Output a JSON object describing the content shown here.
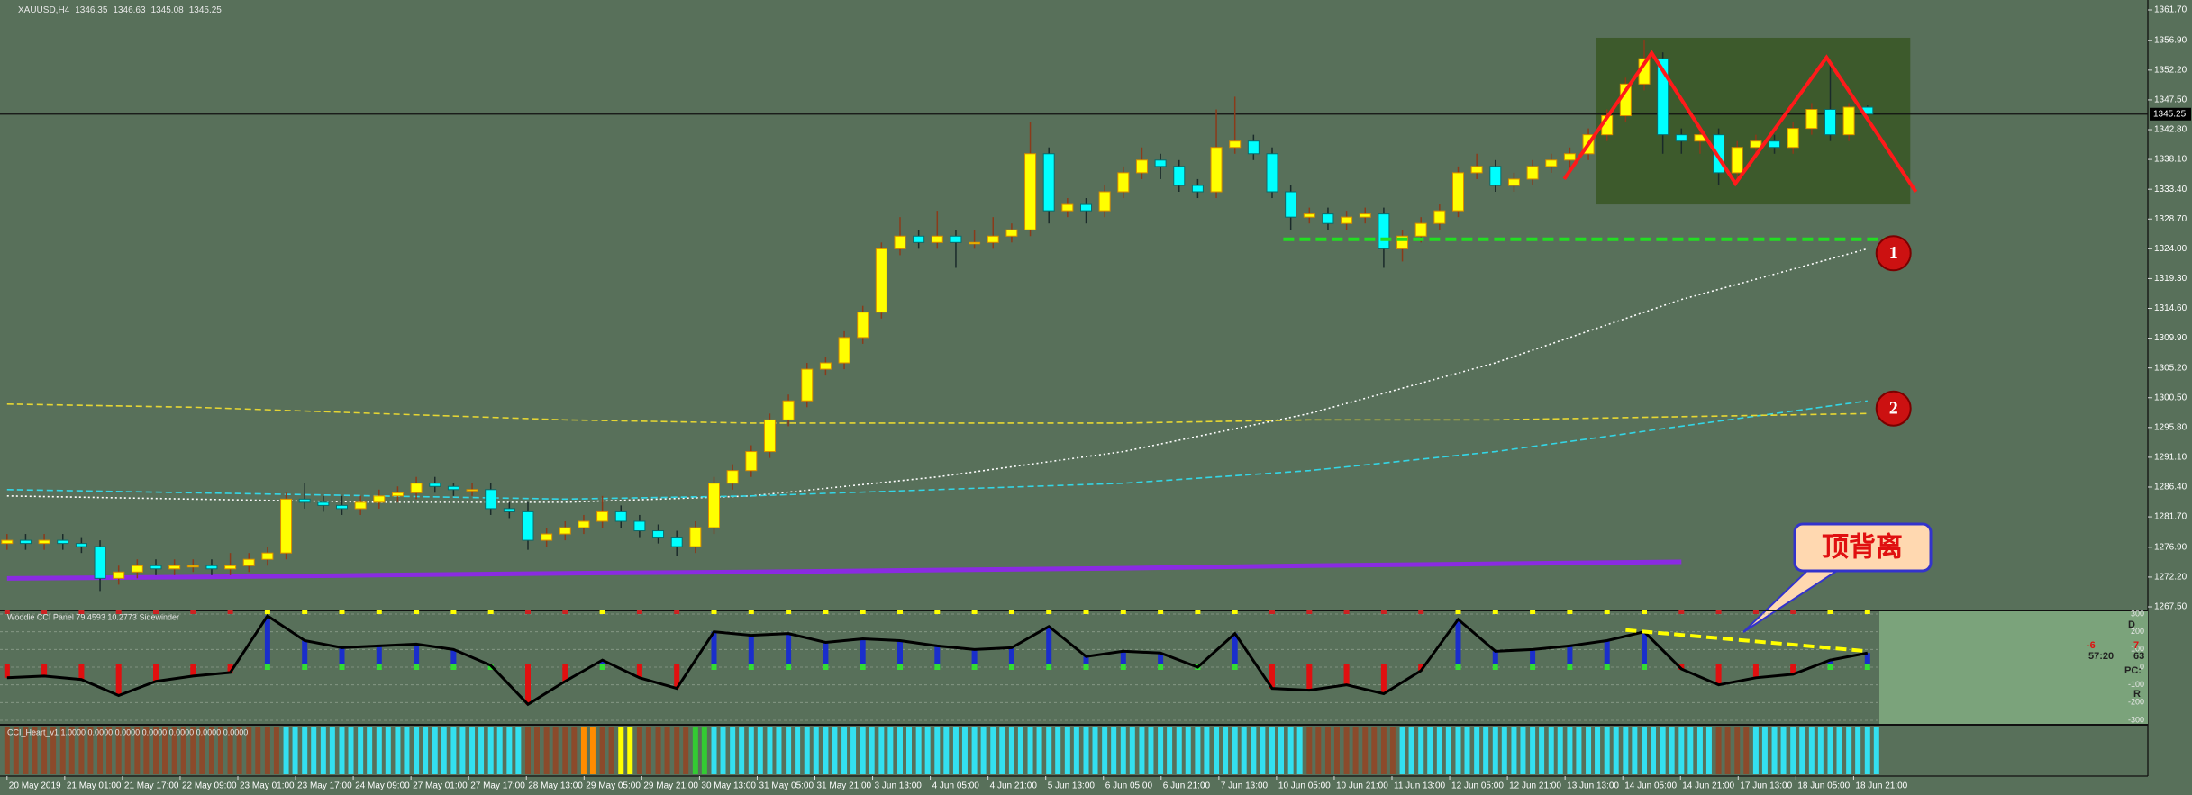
{
  "chart_data": [
    {
      "type": "candlestick",
      "symbol": "XAUUSD,H4",
      "open": [
        1277.5,
        1278,
        1277.5,
        1278,
        1277.5,
        1277,
        1272,
        1273,
        1274,
        1273.5,
        1274,
        1274,
        1273.5,
        1274,
        1275,
        1276,
        1284.5,
        1284,
        1283.5,
        1283,
        1284,
        1285,
        1285.5,
        1287,
        1286.5,
        1286,
        1286,
        1283,
        1282.5,
        1278,
        1279,
        1280,
        1281,
        1282.5,
        1281,
        1279.5,
        1278.5,
        1277,
        1280,
        1287,
        1289,
        1292,
        1297,
        1300,
        1305,
        1306,
        1310,
        1314,
        1324,
        1326,
        1325,
        1326,
        1325,
        1325,
        1326,
        1327,
        1339,
        1330,
        1331,
        1330,
        1333,
        1336,
        1338,
        1337,
        1334,
        1333,
        1340,
        1341,
        1339,
        1333,
        1329,
        1329.5,
        1328,
        1329,
        1329.5,
        1324,
        1326,
        1328,
        1330,
        1336,
        1337,
        1334,
        1335,
        1337,
        1338,
        1339,
        1342,
        1345,
        1350,
        1354,
        1342,
        1341,
        1342,
        1336,
        1340,
        1341,
        1340,
        1343,
        1346,
        1342,
        1346.35
      ],
      "high": [
        1279,
        1279,
        1279,
        1279,
        1278.5,
        1278,
        1274,
        1275,
        1275,
        1275,
        1275,
        1275,
        1276,
        1276,
        1277,
        1285.5,
        1287,
        1285,
        1285,
        1285,
        1286,
        1286.5,
        1288,
        1288,
        1287,
        1287,
        1287,
        1284,
        1284,
        1280,
        1281,
        1282,
        1285,
        1283.5,
        1282,
        1280.5,
        1279.5,
        1281,
        1288,
        1290,
        1293,
        1298,
        1301,
        1306,
        1307,
        1311,
        1315,
        1325,
        1329,
        1327,
        1330,
        1327,
        1327,
        1329,
        1328,
        1344,
        1340,
        1332,
        1332,
        1334,
        1337,
        1340,
        1339,
        1338,
        1335,
        1346,
        1348,
        1342,
        1340,
        1334,
        1330.5,
        1330.5,
        1330,
        1330.5,
        1330.5,
        1327,
        1329,
        1331,
        1337,
        1339,
        1338,
        1336,
        1338,
        1339,
        1340,
        1343,
        1346,
        1351,
        1357,
        1355,
        1343,
        1343,
        1343,
        1341,
        1342,
        1342,
        1344,
        1347,
        1353,
        1347,
        1346.63
      ],
      "low": [
        1276.5,
        1276.5,
        1276.5,
        1276.5,
        1276,
        1270,
        1271,
        1272,
        1272.5,
        1272.5,
        1273,
        1272.5,
        1272.5,
        1273,
        1274,
        1275,
        1283,
        1282.5,
        1282,
        1282,
        1283,
        1284,
        1284.5,
        1285.5,
        1285,
        1285,
        1282,
        1281.5,
        1276.5,
        1277,
        1278,
        1279,
        1280,
        1280,
        1278.5,
        1277.5,
        1275.5,
        1276,
        1279,
        1286,
        1288,
        1291,
        1296,
        1299,
        1304,
        1305,
        1309,
        1313,
        1323,
        1324,
        1324,
        1321,
        1324,
        1324,
        1325,
        1326,
        1328,
        1329,
        1328,
        1329,
        1332,
        1335,
        1335,
        1333,
        1332,
        1332,
        1339,
        1338,
        1332,
        1327,
        1328,
        1327,
        1327,
        1328,
        1321,
        1322,
        1325,
        1327,
        1329,
        1335,
        1333,
        1333,
        1334,
        1336,
        1336,
        1338,
        1341,
        1344,
        1349,
        1339,
        1339,
        1339,
        1334,
        1335,
        1339,
        1339,
        1339,
        1342,
        1341,
        1341,
        1345.08
      ],
      "close": [
        1278,
        1277.5,
        1278,
        1277.5,
        1277,
        1272,
        1273,
        1274,
        1273.5,
        1274,
        1274,
        1273.5,
        1274,
        1275,
        1276,
        1284.5,
        1284,
        1283.5,
        1283,
        1284,
        1285,
        1285.5,
        1287,
        1286.5,
        1286,
        1286,
        1283,
        1282.5,
        1278,
        1279,
        1280,
        1281,
        1282.5,
        1281,
        1279.5,
        1278.5,
        1277,
        1280,
        1287,
        1289,
        1292,
        1297,
        1300,
        1305,
        1306,
        1310,
        1314,
        1324,
        1326,
        1325,
        1326,
        1325,
        1325,
        1326,
        1327,
        1339,
        1330,
        1331,
        1330,
        1333,
        1336,
        1338,
        1337,
        1334,
        1333,
        1340,
        1341,
        1339,
        1333,
        1329,
        1329.5,
        1328,
        1329,
        1329.5,
        1324,
        1326,
        1328,
        1330,
        1336,
        1337,
        1334,
        1335,
        1337,
        1338,
        1339,
        1342,
        1345,
        1350,
        1354,
        1342,
        1341,
        1342,
        1336,
        1340,
        1341,
        1340,
        1343,
        1346,
        1342,
        1346.35,
        1345.25
      ],
      "up_color": "#ffff00",
      "down_color": "#00ffff",
      "ylim": [
        1267.5,
        1361.7
      ],
      "yticks": [
        {
          "value": 1361.7,
          "label": "1361.70"
        },
        {
          "value": 1356.9,
          "label": "1356.90"
        },
        {
          "value": 1352.2,
          "label": "1352.20"
        },
        {
          "value": 1347.5,
          "label": "1347.50"
        },
        {
          "value": 1342.8,
          "label": "1342.80"
        },
        {
          "value": 1338.1,
          "label": "1338.10"
        },
        {
          "value": 1333.4,
          "label": "1333.40"
        },
        {
          "value": 1328.7,
          "label": "1328.70"
        },
        {
          "value": 1324,
          "label": "1324.00"
        },
        {
          "value": 1319.3,
          "label": "1319.30"
        },
        {
          "value": 1314.6,
          "label": "1314.60"
        },
        {
          "value": 1309.9,
          "label": "1309.90"
        },
        {
          "value": 1305.2,
          "label": "1305.20"
        },
        {
          "value": 1300.5,
          "label": "1300.50"
        },
        {
          "value": 1295.8,
          "label": "1295.80"
        },
        {
          "value": 1291.1,
          "label": "1291.10"
        },
        {
          "value": 1286.4,
          "label": "1286.40"
        },
        {
          "value": 1281.7,
          "label": "1281.70"
        },
        {
          "value": 1276.9,
          "label": "1276.90"
        },
        {
          "value": 1272.2,
          "label": "1272.20"
        },
        {
          "value": 1267.5,
          "label": "1267.50"
        }
      ],
      "x_labels": [
        "20 May 2019",
        "21 May 01:00",
        "21 May 17:00",
        "22 May 09:00",
        "23 May 01:00",
        "23 May 17:00",
        "24 May 09:00",
        "27 May 01:00",
        "27 May 17:00",
        "28 May 13:00",
        "29 May 05:00",
        "29 May 21:00",
        "30 May 13:00",
        "31 May 05:00",
        "31 May 21:00",
        "3 Jun 13:00",
        "4 Jun 05:00",
        "4 Jun 21:00",
        "5 Jun 13:00",
        "6 Jun 05:00",
        "6 Jun 21:00",
        "7 Jun 13:00",
        "10 Jun 05:00",
        "10 Jun 21:00",
        "11 Jun 13:00",
        "12 Jun 05:00",
        "12 Jun 21:00",
        "13 Jun 13:00",
        "14 Jun 05:00",
        "14 Jun 21:00",
        "17 Jun 13:00",
        "18 Jun 05:00",
        "18 Jun 21:00"
      ],
      "moving_averages": {
        "x": [
          0,
          10,
          20,
          30,
          40,
          50,
          60,
          70,
          80,
          90,
          100
        ],
        "series": [
          {
            "color": "#ffffff",
            "style": "dotted",
            "values": [
              1285,
              1284.5,
              1284,
              1284,
              1285,
              1288,
              1292,
              1298,
              1306,
              1316,
              1324
            ]
          },
          {
            "color": "#33d6e6",
            "style": "dashed",
            "values": [
              1286,
              1285.5,
              1285,
              1284.5,
              1285,
              1286,
              1287,
              1289,
              1292,
              1296,
              1300
            ]
          },
          {
            "color": "#e6d633",
            "style": "dashed",
            "values": [
              1299.5,
              1299,
              1298,
              1297,
              1296.5,
              1296.5,
              1296.5,
              1297,
              1297,
              1297.5,
              1298
            ]
          },
          {
            "color": "#8a2be2",
            "style": "thick",
            "values": [
              1272,
              1272.2,
              1272.5,
              1272.8,
              1273,
              1273.3,
              1273.6,
              1274,
              1274.3,
              1274.6,
              null
            ]
          }
        ]
      },
      "box": {
        "x": [
          85.4,
          102.3
        ],
        "y": [
          1331,
          1357.3
        ],
        "color": "#3d5a2c"
      },
      "support_line": {
        "x": [
          68.6,
          101.2
        ],
        "y": [
          1325.5,
          1325.5
        ],
        "color": "#22dd22"
      },
      "zigzag": {
        "x": [
          83.7,
          88.4,
          92.9,
          97.8,
          102.6
        ],
        "y": [
          1335,
          1354.9,
          1334.3,
          1354.2,
          1333
        ],
        "color": "#ff1a1a"
      },
      "markers": [
        {
          "label": "1",
          "x": 101.4,
          "y": 1323.3
        },
        {
          "label": "2",
          "x": 101.4,
          "y": 1298.8
        }
      ],
      "callout": "顶背离"
    },
    {
      "type": "oscillator",
      "title": "Woodie CCI Panel 79.4593 10.2773 Sidewinder",
      "x": [
        0,
        2,
        4,
        6,
        8,
        10,
        12,
        14,
        16,
        18,
        20,
        22,
        24,
        26,
        28,
        30,
        32,
        34,
        36,
        38,
        40,
        42,
        44,
        46,
        48,
        50,
        52,
        54,
        56,
        58,
        60,
        62,
        64,
        66,
        68,
        70,
        72,
        74,
        76,
        78,
        80,
        82,
        84,
        86,
        88,
        90,
        92,
        94,
        96,
        98,
        100
      ],
      "values": [
        -60,
        -50,
        -70,
        -160,
        -80,
        -50,
        -30,
        290,
        150,
        110,
        120,
        130,
        100,
        10,
        -210,
        -80,
        40,
        -60,
        -120,
        200,
        180,
        190,
        140,
        160,
        150,
        120,
        100,
        110,
        230,
        60,
        90,
        80,
        0,
        190,
        -120,
        -130,
        -100,
        -150,
        -20,
        270,
        90,
        100,
        120,
        150,
        200,
        -10,
        -100,
        -60,
        -40,
        40,
        80
      ],
      "line_color": "#000000",
      "pos_color": "#1a2ecc",
      "neg_color": "#e01010",
      "ylim": [
        -300,
        300
      ],
      "yticks": [
        300,
        200,
        100,
        0,
        -100,
        -200,
        -300
      ],
      "grid": true,
      "divergence_line": {
        "x": [
          87,
          100
        ],
        "y": [
          210,
          90
        ],
        "color": "#ffff00"
      },
      "side_texts": [
        "D",
        "-6",
        "7",
        "57:20",
        "63",
        "PC:",
        "R"
      ]
    },
    {
      "type": "states",
      "title": "CCI_Heart_v1 1.0000 0.0000 0.0000 0.0000 0.0000 0.0000 0.0000",
      "runs": [
        {
          "from": 0,
          "to": 14,
          "color": "#8b4a2b"
        },
        {
          "from": 15,
          "to": 27,
          "color": "#33e0f0"
        },
        {
          "from": 28,
          "to": 30,
          "color": "#8b4a2b"
        },
        {
          "from": 31,
          "to": 31,
          "color": "#ff8c00"
        },
        {
          "from": 32,
          "to": 32,
          "color": "#8b4a2b"
        },
        {
          "from": 33,
          "to": 33,
          "color": "#ffff00"
        },
        {
          "from": 34,
          "to": 36,
          "color": "#8b4a2b"
        },
        {
          "from": 37,
          "to": 37,
          "color": "#33cc33"
        },
        {
          "from": 38,
          "to": 69,
          "color": "#33e0f0"
        },
        {
          "from": 70,
          "to": 74,
          "color": "#8b4a2b"
        },
        {
          "from": 75,
          "to": 91,
          "color": "#33e0f0"
        },
        {
          "from": 92,
          "to": 93,
          "color": "#8b4a2b"
        },
        {
          "from": 94,
          "to": 100,
          "color": "#33e0f0"
        }
      ]
    }
  ]
}
